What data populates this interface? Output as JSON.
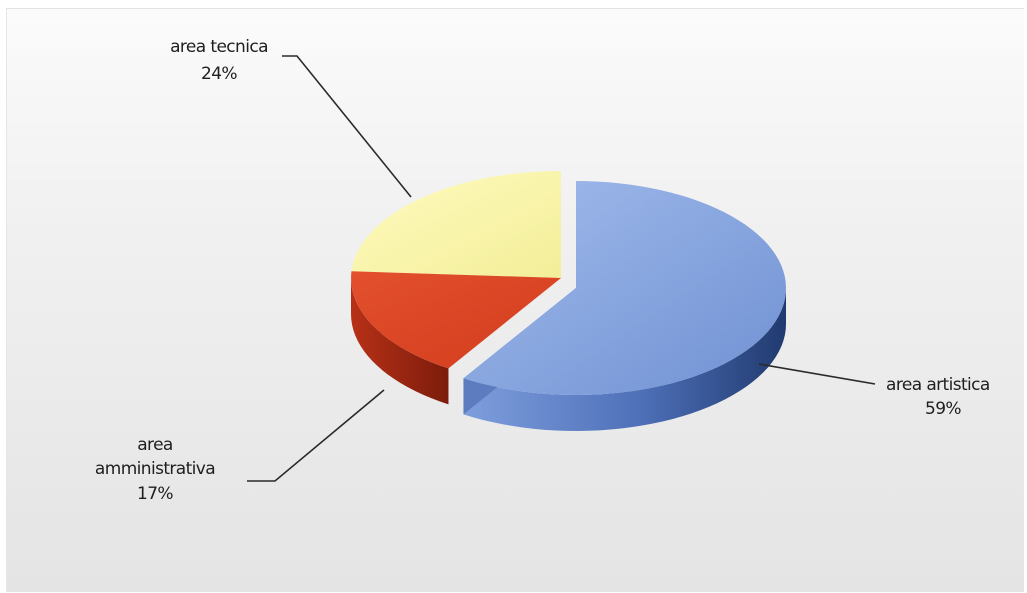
{
  "chart_data": {
    "type": "pie",
    "style": "3d-exploded",
    "title": "",
    "slices": [
      {
        "label": "area artistica",
        "value": 59,
        "value_label": "59%",
        "color": "#7f9fdc"
      },
      {
        "label": "area amministrativa",
        "value": 17,
        "value_label": "17%",
        "color": "#e04a28"
      },
      {
        "label": "area tecnica",
        "value": 24,
        "value_label": "24%",
        "color": "#f8f4a6"
      }
    ],
    "legend": "none"
  }
}
